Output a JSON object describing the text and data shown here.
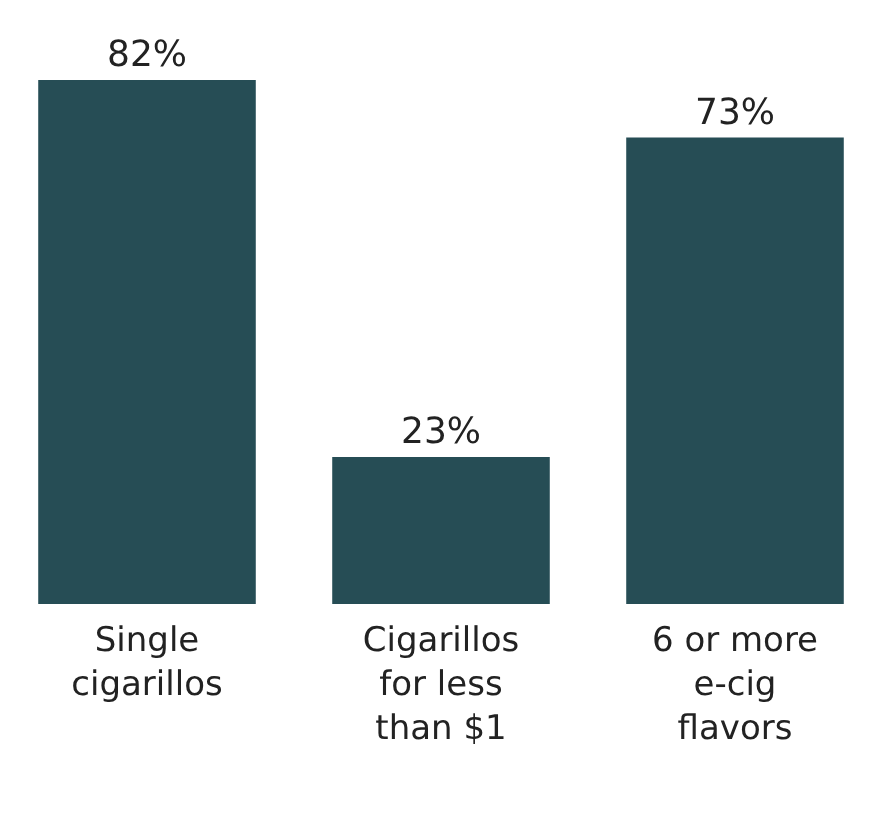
{
  "chart_data": {
    "type": "bar",
    "categories": [
      "Single cigarillos",
      "Cigarillos for less than $1",
      "6 or more e-cig flavors"
    ],
    "values": [
      82,
      23,
      73
    ],
    "value_labels": [
      "82%",
      "23%",
      "73%"
    ],
    "color": "#264d55"
  }
}
